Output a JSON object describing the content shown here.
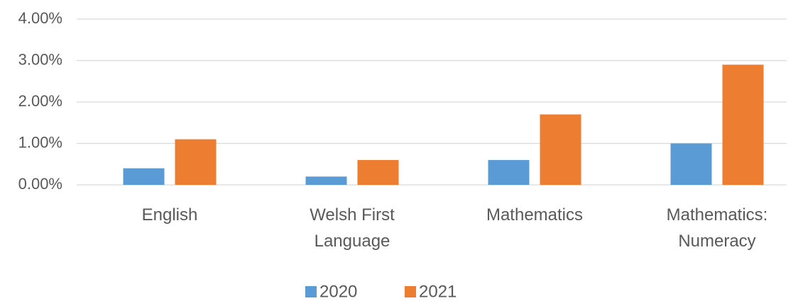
{
  "chart_data": {
    "type": "bar",
    "categories": [
      "English",
      "Welsh First Language",
      "Mathematics",
      "Mathematics: Numeracy"
    ],
    "series": [
      {
        "name": "2020",
        "color": "#5b9bd5",
        "values": [
          0.4,
          0.2,
          0.6,
          1.0
        ]
      },
      {
        "name": "2021",
        "color": "#ed7d31",
        "values": [
          1.1,
          0.6,
          1.7,
          2.9
        ]
      }
    ],
    "ylim": [
      0,
      4
    ],
    "yticks": [
      {
        "value": 0,
        "label": "0.00%"
      },
      {
        "value": 1,
        "label": "1.00%"
      },
      {
        "value": 2,
        "label": "2.00%"
      },
      {
        "value": 3,
        "label": "3.00%"
      },
      {
        "value": 4,
        "label": "4.00%"
      }
    ],
    "grid": true,
    "legend": "bottom"
  }
}
